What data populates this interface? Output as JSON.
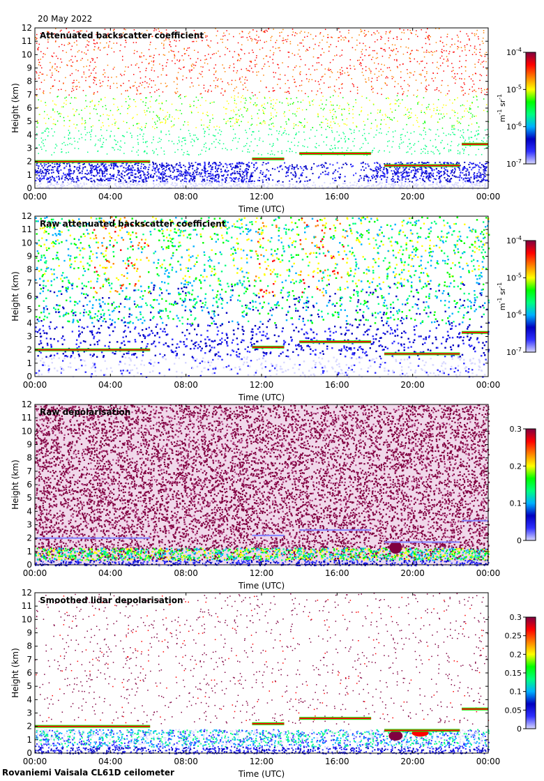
{
  "date_label": "20 May 2022",
  "footer_label": "Rovaniemi Vaisala CL61D ceilometer",
  "colors": {
    "colormap": [
      "#d8d8ff",
      "#3030ff",
      "#0000c0",
      "#00b0ff",
      "#00ff80",
      "#00ff00",
      "#ffff00",
      "#ff8000",
      "#ff0000",
      "#800040"
    ]
  },
  "chart_data": [
    {
      "type": "heatmap",
      "title": "Attenuated backscatter coefficient",
      "xlabel": "Time (UTC)",
      "ylabel": "Height (km)",
      "xticks": [
        "00:00",
        "04:00",
        "08:00",
        "12:00",
        "16:00",
        "20:00",
        "00:00"
      ],
      "yticks": [
        "0",
        "1",
        "2",
        "3",
        "4",
        "5",
        "6",
        "7",
        "8",
        "9",
        "10",
        "11",
        "12"
      ],
      "ylim": [
        0,
        12
      ],
      "xlim_hours": [
        0,
        24
      ],
      "colorbar": {
        "scale": "log",
        "unit": "m-1 sr-1",
        "ticks": [
          "10-4",
          "10-5",
          "10-6",
          "10-7"
        ]
      },
      "cloud_layers": [
        {
          "t0": 0,
          "t1": 6.1,
          "h": 2.0
        },
        {
          "t0": 11.5,
          "t1": 13.2,
          "h": 2.2
        },
        {
          "t0": 14.0,
          "t1": 17.8,
          "h": 2.6
        },
        {
          "t0": 18.5,
          "t1": 22.5,
          "h": 1.7
        },
        {
          "t0": 22.6,
          "t1": 24,
          "h": 3.3
        }
      ]
    },
    {
      "type": "heatmap",
      "title": "Raw attenuated backscatter coefficient",
      "xlabel": "Time (UTC)",
      "ylabel": "Height (km)",
      "xticks": [
        "00:00",
        "04:00",
        "08:00",
        "12:00",
        "16:00",
        "20:00",
        "00:00"
      ],
      "yticks": [
        "0",
        "1",
        "2",
        "3",
        "4",
        "5",
        "6",
        "7",
        "8",
        "9",
        "10",
        "11",
        "12"
      ],
      "ylim": [
        0,
        12
      ],
      "xlim_hours": [
        0,
        24
      ],
      "colorbar": {
        "scale": "log",
        "unit": "m-1 sr-1",
        "ticks": [
          "10-4",
          "10-5",
          "10-6",
          "10-7"
        ]
      }
    },
    {
      "type": "heatmap",
      "title": "Raw depolarisation",
      "xlabel": "Time (UTC)",
      "ylabel": "Height (km)",
      "xticks": [
        "00:00",
        "04:00",
        "08:00",
        "12:00",
        "16:00",
        "20:00",
        "00:00"
      ],
      "yticks": [
        "0",
        "1",
        "2",
        "3",
        "4",
        "5",
        "6",
        "7",
        "8",
        "9",
        "10",
        "11",
        "12"
      ],
      "ylim": [
        0,
        12
      ],
      "xlim_hours": [
        0,
        24
      ],
      "colorbar": {
        "scale": "linear",
        "range": [
          0,
          0.3
        ],
        "ticks": [
          "0.3",
          "0.2",
          "0.1",
          "0"
        ]
      }
    },
    {
      "type": "heatmap",
      "title": "Smoothed lidar depolarisation",
      "xlabel": "Time (UTC)",
      "ylabel": "Height (km)",
      "xticks": [
        "00:00",
        "04:00",
        "08:00",
        "12:00",
        "16:00",
        "20:00",
        "00:00"
      ],
      "yticks": [
        "0",
        "1",
        "2",
        "3",
        "4",
        "5",
        "6",
        "7",
        "8",
        "9",
        "10",
        "11",
        "12"
      ],
      "ylim": [
        0,
        12
      ],
      "xlim_hours": [
        0,
        24
      ],
      "colorbar": {
        "scale": "linear",
        "range": [
          0,
          0.3
        ],
        "ticks": [
          "0.3",
          "0.25",
          "0.2",
          "0.15",
          "0.1",
          "0.05",
          "0"
        ]
      }
    }
  ]
}
